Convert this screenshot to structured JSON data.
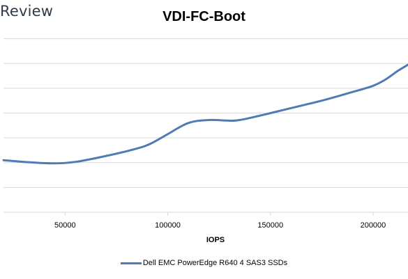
{
  "logo": {
    "text": "Review"
  },
  "chart_data": {
    "type": "line",
    "title": "VDI-FC-Boot",
    "xlabel": "IOPS",
    "ylabel": "",
    "xlim": [
      20000,
      217000
    ],
    "ylim": [
      0,
      8
    ],
    "x_ticks": [
      50000,
      100000,
      150000,
      200000
    ],
    "y_gridlines": [
      1,
      2,
      3,
      4,
      5,
      6,
      7
    ],
    "grid": true,
    "legend_position": "bottom",
    "series": [
      {
        "name": "Dell EMC PowerEdge R640 4 SAS3 SSDs",
        "color": "#4f7ab3",
        "x": [
          20000,
          30000,
          44000,
          55000,
          70000,
          85000,
          92000,
          100000,
          110000,
          120000,
          133000,
          145000,
          160000,
          175000,
          190000,
          200000,
          206000,
          212000,
          217000
        ],
        "y": [
          2.1,
          2.03,
          1.97,
          2.03,
          2.27,
          2.57,
          2.78,
          3.15,
          3.6,
          3.72,
          3.7,
          3.9,
          4.2,
          4.5,
          4.85,
          5.1,
          5.35,
          5.7,
          5.95
        ]
      }
    ]
  }
}
